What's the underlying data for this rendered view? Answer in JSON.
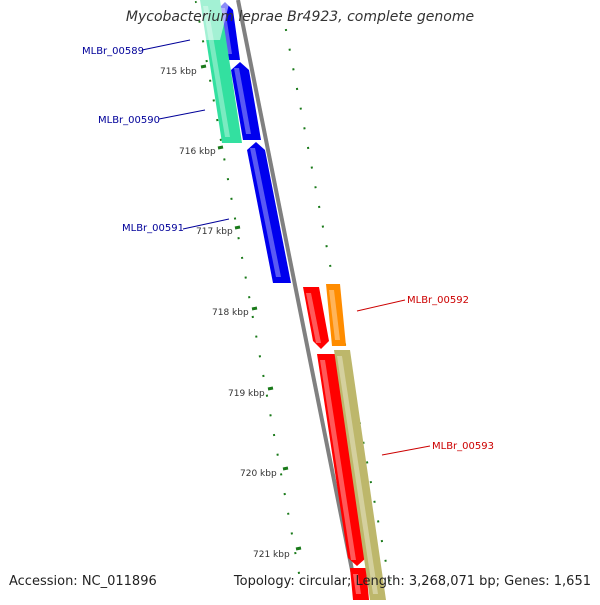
{
  "title": "Mycobacterium leprae Br4923, complete genome",
  "footer": {
    "accession": "Accession: NC_011896",
    "stats": "Topology: circular; Length: 3,268,071 bp; Genes: 1,651"
  },
  "colors": {
    "backbone": "#808080",
    "tick": "#1a7a1a",
    "gene_blue": "#0000ee",
    "gene_green": "#33e0a0",
    "gene_red": "#ff0000",
    "gene_orange": "#ff8c00",
    "gene_khaki": "#bdb76b",
    "label_blue": "#000099",
    "label_red": "#cc0000"
  },
  "scale_labels": [
    "715 kbp",
    "716 kbp",
    "717 kbp",
    "718 kbp",
    "719 kbp",
    "720 kbp",
    "721 kbp"
  ],
  "gene_labels": [
    {
      "text": "MLBr_00589",
      "color": "label_blue"
    },
    {
      "text": "MLBr_00590",
      "color": "label_blue"
    },
    {
      "text": "MLBr_00591",
      "color": "label_blue"
    },
    {
      "text": "MLBr_00592",
      "color": "label_red"
    },
    {
      "text": "MLBr_00593",
      "color": "label_red"
    }
  ]
}
